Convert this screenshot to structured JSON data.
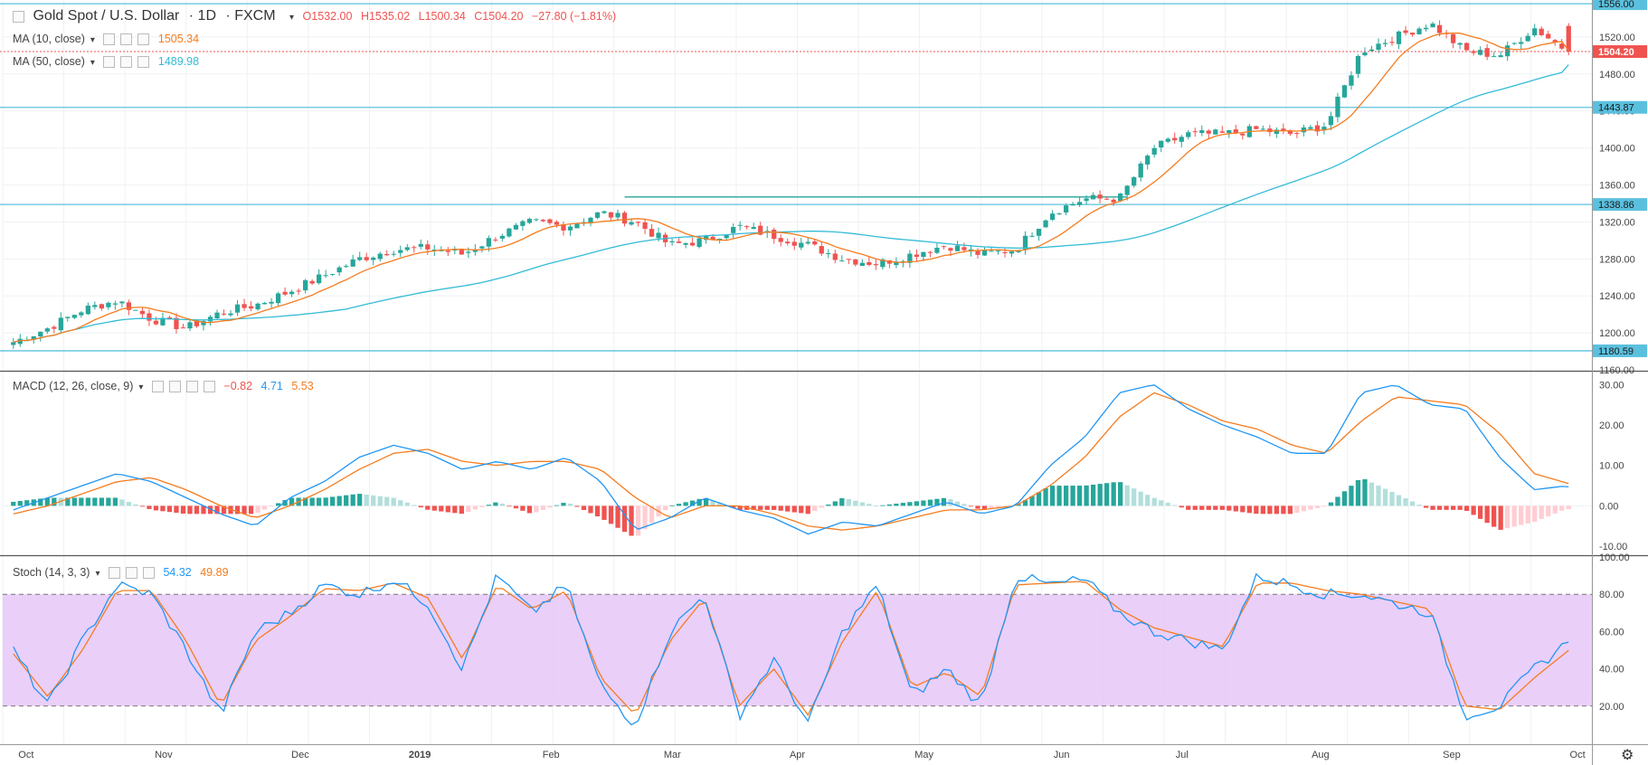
{
  "header": {
    "symbol": "Gold Spot / U.S. Dollar",
    "interval": "1D",
    "exchange": "FXCM",
    "open": "O1532.00",
    "high": "H1535.02",
    "low": "L1500.34",
    "close": "C1504.20",
    "change": "−27.80 (−1.81%)"
  },
  "indicators": {
    "ma10": {
      "label": "MA (10, close)",
      "value": "1505.34",
      "color": "#F57C1F"
    },
    "ma50": {
      "label": "MA (50, close)",
      "value": "1489.98",
      "color": "#33BBD6"
    },
    "macd": {
      "label": "MACD (12, 26, close, 9)",
      "hist": "−0.82",
      "macd": "4.71",
      "signal": "5.53"
    },
    "stoch": {
      "label": "Stoch (14, 3, 3)",
      "k": "54.32",
      "d": "49.89"
    }
  },
  "colors": {
    "up": "#26A69A",
    "down": "#EF5350",
    "ma10": "#F57C1F",
    "ma50": "#33BBD6",
    "macd": "#2196F3",
    "signal": "#F57C1F",
    "stochBand": "#E6C7F8",
    "hline": "#5BC0DE",
    "priceTag": "#EF5350"
  },
  "price_axis": {
    "ticks": [
      "1160.00",
      "1200.00",
      "1240.00",
      "1280.00",
      "1320.00",
      "1360.00",
      "1400.00",
      "1440.00",
      "1480.00",
      "1520.00"
    ],
    "levels": [
      "1556.00",
      "1443.87",
      "1338.86",
      "1180.59"
    ],
    "last": "1504.20"
  },
  "macd_axis": {
    "ticks": [
      "-10.00",
      "0.00",
      "10.00",
      "20.00",
      "30.00"
    ]
  },
  "stoch_axis": {
    "ticks": [
      "20.00",
      "40.00",
      "60.00",
      "80.00",
      "100.00"
    ]
  },
  "time_axis": [
    "Oct",
    "Nov",
    "Dec",
    "2019",
    "Feb",
    "Mar",
    "Apr",
    "May",
    "Jun",
    "Jul",
    "Aug",
    "Sep",
    "Oct"
  ],
  "chart_data": [
    {
      "type": "candlestick",
      "title": "Gold Spot / U.S. Dollar 1D FXCM",
      "ylim": [
        1160,
        1560
      ],
      "x_range": [
        "2018-09-27",
        "2019-09-20"
      ],
      "closes_weekly": [
        1190,
        1205,
        1225,
        1235,
        1215,
        1205,
        1222,
        1230,
        1245,
        1262,
        1280,
        1290,
        1292,
        1285,
        1305,
        1320,
        1315,
        1330,
        1320,
        1295,
        1300,
        1315,
        1305,
        1295,
        1280,
        1275,
        1285,
        1295,
        1285,
        1290,
        1330,
        1345,
        1345,
        1400,
        1415,
        1415,
        1420,
        1415,
        1425,
        1505,
        1520,
        1535,
        1505,
        1500,
        1530,
        1504
      ],
      "ma10_last": 1505.34,
      "ma50_last": 1489.98,
      "last": 1504.2
    },
    {
      "type": "line",
      "title": "MACD (12, 26, close, 9)",
      "ylim": [
        -12,
        33
      ],
      "macd_weekly": [
        -1,
        2,
        5,
        8,
        6,
        2,
        -2,
        -5,
        2,
        6,
        12,
        15,
        13,
        9,
        11,
        9,
        12,
        6,
        -6,
        -3,
        2,
        -1,
        -3,
        -7,
        -4,
        -5,
        -2,
        1,
        -2,
        0,
        10,
        17,
        28,
        30,
        24,
        20,
        17,
        13,
        13,
        28,
        30,
        25,
        24,
        12,
        4,
        5
      ],
      "signal_weekly": [
        -2,
        0,
        3,
        6,
        7,
        4,
        0,
        -3,
        0,
        4,
        9,
        13,
        14,
        11,
        10,
        11,
        11,
        9,
        2,
        -3,
        0,
        0,
        -2,
        -5,
        -6,
        -5,
        -3,
        -1,
        -1,
        0,
        5,
        12,
        22,
        28,
        25,
        21,
        19,
        15,
        13,
        21,
        27,
        26,
        25,
        18,
        8,
        5.5
      ],
      "last": {
        "hist": -0.82,
        "macd": 4.71,
        "signal": 5.53
      }
    },
    {
      "type": "line",
      "title": "Stoch (14, 3, 3)",
      "ylim": [
        0,
        100
      ],
      "bands": [
        20,
        80
      ],
      "k_weekly": [
        50,
        20,
        55,
        85,
        80,
        50,
        15,
        60,
        70,
        85,
        80,
        88,
        75,
        40,
        90,
        70,
        85,
        30,
        10,
        60,
        80,
        15,
        45,
        10,
        60,
        85,
        25,
        40,
        20,
        90,
        85,
        88,
        70,
        60,
        55,
        50,
        90,
        85,
        80,
        80,
        75,
        70,
        15,
        20,
        40,
        54.32
      ],
      "d_weekly": [
        48,
        25,
        50,
        82,
        82,
        55,
        20,
        55,
        68,
        83,
        82,
        86,
        78,
        45,
        85,
        72,
        82,
        35,
        15,
        55,
        78,
        20,
        40,
        15,
        55,
        82,
        30,
        38,
        25,
        85,
        86,
        87,
        72,
        62,
        57,
        52,
        86,
        86,
        82,
        80,
        76,
        72,
        20,
        18,
        35,
        49.89
      ]
    }
  ]
}
